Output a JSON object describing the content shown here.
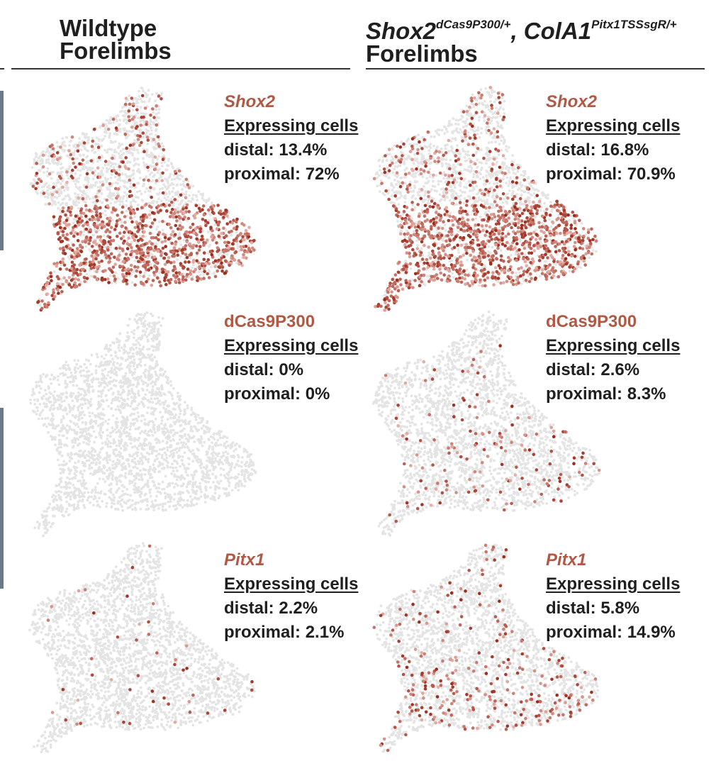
{
  "header": {
    "left": {
      "line1": "Wildtype",
      "line2": "Forelimbs"
    },
    "right": {
      "gene1": "Shox2",
      "sup1": "dCas9P300/+",
      "sep": ", ",
      "gene2": "ColA1",
      "sup2": "Pitx1TSSsgR/+",
      "line2": "Forelimbs"
    }
  },
  "colors": {
    "background_cell": "#e4e4e4",
    "expression_high": "#9c2a1a",
    "expression_low": "#e6b0a8",
    "gene_label": "#b05a46"
  },
  "chart_data": {
    "type": "scatter",
    "expressing_label": "Expressing cells",
    "distal_label": "distal: ",
    "proximal_label": "proximal: ",
    "panels": [
      {
        "gene": "Shox2",
        "italic": true,
        "condition": "Wildtype",
        "distal": "13.4%",
        "proximal": "72%"
      },
      {
        "gene": "Shox2",
        "italic": true,
        "condition": "Mutant",
        "distal": "16.8%",
        "proximal": "70.9%"
      },
      {
        "gene": "dCas9P300",
        "italic": false,
        "condition": "Wildtype",
        "distal": "0%",
        "proximal": "0%"
      },
      {
        "gene": "dCas9P300",
        "italic": false,
        "condition": "Mutant",
        "distal": "2.6%",
        "proximal": "8.3%"
      },
      {
        "gene": "Pitx1",
        "italic": true,
        "condition": "Wildtype",
        "distal": "2.2%",
        "proximal": "2.1%"
      },
      {
        "gene": "Pitx1",
        "italic": true,
        "condition": "Mutant",
        "distal": "5.8%",
        "proximal": "14.9%"
      }
    ]
  }
}
